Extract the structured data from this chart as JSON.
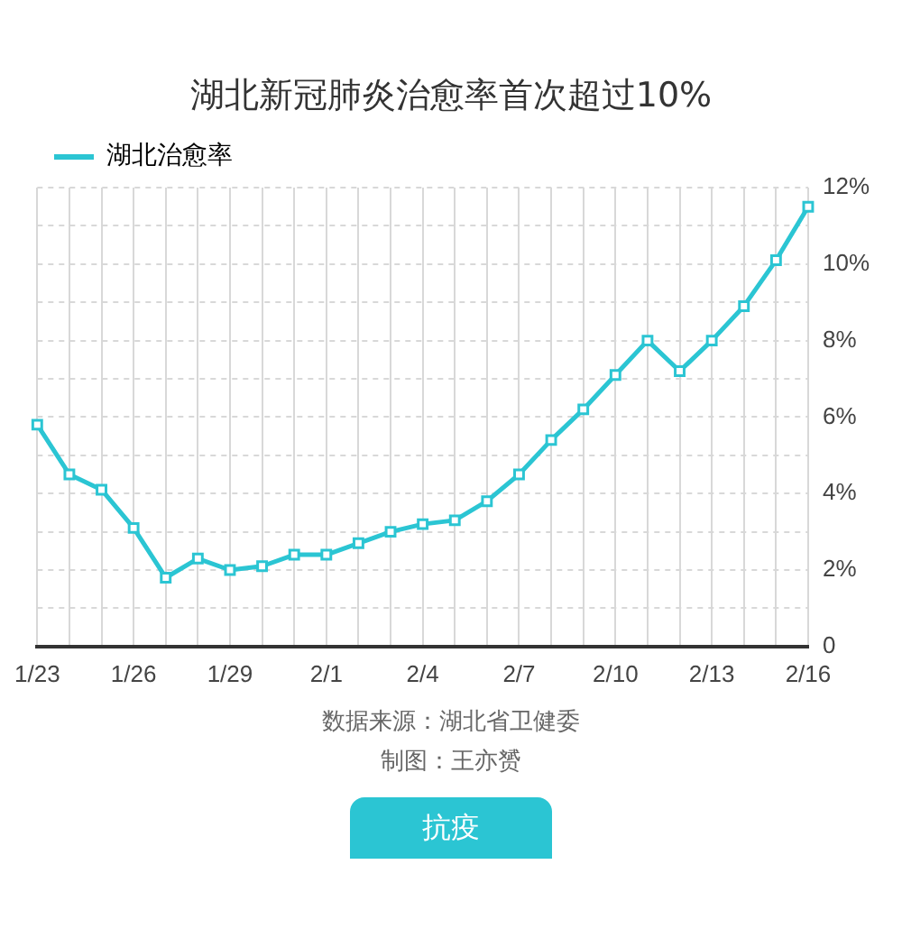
{
  "chart_data": {
    "type": "line",
    "title": "湖北新冠肺炎治愈率首次超过10%",
    "categories": [
      "1/23",
      null,
      null,
      "1/26",
      null,
      null,
      "1/29",
      null,
      null,
      "2/1",
      null,
      null,
      "2/4",
      null,
      null,
      "2/7",
      null,
      null,
      "2/10",
      null,
      null,
      "2/13",
      null,
      null,
      "2/16"
    ],
    "series": [
      {
        "name": "湖北治愈率",
        "color": "#2bc5d3",
        "values": [
          5.8,
          4.5,
          4.1,
          3.1,
          1.8,
          2.3,
          2.0,
          2.1,
          2.4,
          2.4,
          2.7,
          3.0,
          3.2,
          3.3,
          3.8,
          4.5,
          5.4,
          6.2,
          7.1,
          8.0,
          7.2,
          8.0,
          8.9,
          10.1,
          11.5
        ]
      }
    ],
    "ylim": [
      0,
      12
    ],
    "yticks": [
      0,
      {
        "value": 1,
        "label": null
      },
      {
        "value": 2,
        "label": "2%"
      },
      {
        "value": 3,
        "label": null
      },
      {
        "value": 4,
        "label": "4%"
      },
      {
        "value": 5,
        "label": null
      },
      {
        "value": 6,
        "label": "6%"
      },
      {
        "value": 7,
        "label": null
      },
      {
        "value": 8,
        "label": "8%"
      },
      {
        "value": 9,
        "label": null
      },
      {
        "value": 10,
        "label": "10%"
      },
      {
        "value": 11,
        "label": null
      },
      {
        "value": 12,
        "label": "12%"
      }
    ],
    "grid": true,
    "legend": "top left",
    "marker": "square",
    "line_style": "solid",
    "annotations": [
      "数据来源：湖北省卫健委",
      "制图：王亦赟",
      "抗疫"
    ]
  }
}
